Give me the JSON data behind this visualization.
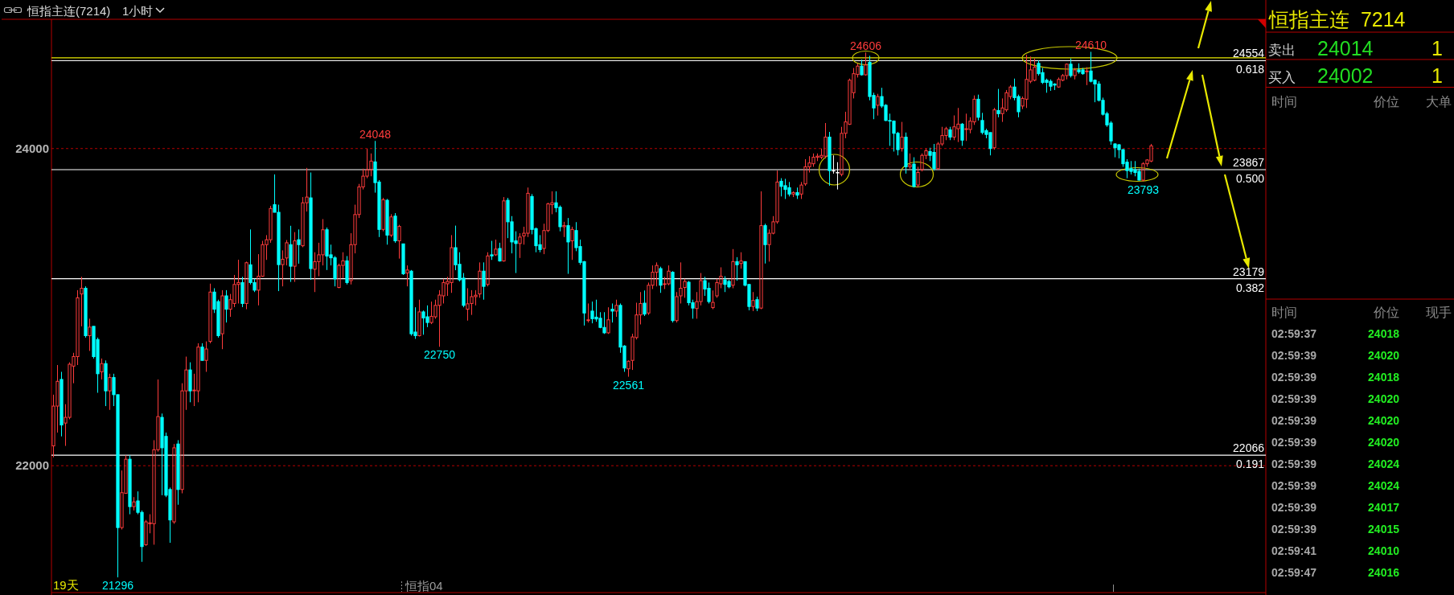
{
  "chart_data": [
    {
      "type": "candlestick",
      "title": "恒指主连(7214)",
      "subtitle": "1小时",
      "categories": [
        null,
        null,
        null,
        null,
        null,
        null,
        null,
        null,
        null,
        null,
        null,
        null,
        null,
        null,
        null,
        null,
        null,
        null,
        null,
        null,
        null,
        null,
        null,
        null,
        null,
        null,
        null,
        null,
        null,
        null,
        null,
        null,
        null,
        null,
        null,
        null,
        null,
        null,
        null,
        null,
        null,
        null,
        null,
        null,
        null,
        null,
        null,
        null,
        null,
        null,
        null,
        null,
        null,
        null,
        null,
        null,
        null,
        null,
        null,
        null,
        null,
        null,
        null,
        null,
        null,
        null,
        null,
        null,
        null,
        null,
        null,
        null,
        null,
        null,
        null,
        null,
        null,
        null,
        null,
        null,
        null,
        null,
        null,
        null,
        null,
        null,
        null,
        null,
        null,
        null,
        null,
        null,
        null,
        null,
        null,
        null,
        null,
        null,
        null,
        null,
        null,
        null,
        null,
        null,
        null,
        null,
        null,
        null,
        null,
        null,
        null,
        null,
        null,
        null,
        null,
        null,
        null,
        null,
        null,
        null,
        null,
        null,
        null,
        null,
        null,
        null,
        null,
        null,
        null,
        null,
        null,
        null,
        null,
        null,
        null,
        null,
        null,
        null,
        null,
        null,
        null,
        null,
        null,
        null,
        null,
        null,
        null,
        null,
        null,
        null,
        null,
        null,
        null,
        null,
        null,
        null,
        null,
        null,
        null,
        null,
        null,
        null,
        null,
        null,
        null,
        null,
        null,
        null,
        null,
        null,
        null,
        null,
        null,
        null,
        null,
        null,
        null,
        null,
        null,
        null,
        null,
        null,
        null,
        null,
        null,
        null,
        null,
        null,
        null,
        null,
        null,
        null,
        null,
        null,
        null,
        null,
        null,
        null,
        null,
        null,
        null,
        null,
        null,
        null,
        null,
        null,
        null,
        null,
        null,
        null,
        null,
        null,
        null,
        null,
        null,
        null,
        null,
        null,
        null,
        null,
        null,
        null,
        null,
        null,
        null,
        null,
        null,
        null,
        null,
        null,
        null,
        null,
        null,
        null,
        null,
        null,
        null,
        null,
        null,
        null,
        null,
        null,
        null,
        null,
        null,
        null,
        null,
        null,
        null,
        null,
        null,
        null,
        null,
        null,
        null,
        null,
        null,
        null,
        null,
        null,
        null,
        null,
        null,
        null,
        null,
        null,
        null,
        null,
        null,
        null,
        null,
        null,
        null,
        null,
        null,
        null,
        null,
        null,
        null,
        null,
        null,
        null,
        null,
        null,
        null,
        null,
        null,
        null,
        null,
        null,
        null,
        null,
        null,
        null,
        null,
        null,
        null,
        null,
        null,
        null,
        null,
        null
      ],
      "ohlc": [
        [
          22125,
          22448,
          22053,
          22376
        ],
        [
          22376,
          22635,
          22209,
          22532
        ],
        [
          22544,
          22592,
          22185,
          22257
        ],
        [
          22269,
          22388,
          22125,
          22305
        ],
        [
          22305,
          22652,
          22293,
          22640
        ],
        [
          22628,
          22712,
          22520,
          22688
        ],
        [
          22688,
          23107,
          22635,
          23059
        ],
        [
          23083,
          23191,
          22879,
          23119
        ],
        [
          23119,
          23131,
          22808,
          22820
        ],
        [
          22820,
          22927,
          22724,
          22874
        ],
        [
          22879,
          22879,
          22676,
          22688
        ],
        [
          22796,
          22808,
          22460,
          22580
        ],
        [
          22592,
          22676,
          22544,
          22644
        ],
        [
          22644,
          22664,
          22376,
          22472
        ],
        [
          22472,
          22580,
          22352,
          22556
        ],
        [
          22556,
          22580,
          22376,
          22448
        ],
        [
          22448,
          22448,
          21296,
          21610
        ],
        [
          21610,
          21970,
          21598,
          21830
        ],
        [
          21826,
          22065,
          21826,
          22041
        ],
        [
          22041,
          22065,
          21694,
          21742
        ],
        [
          21742,
          21802,
          21718,
          21772
        ],
        [
          21778,
          21838,
          21694,
          21706
        ],
        [
          21706,
          21718,
          21394,
          21490
        ],
        [
          21502,
          21658,
          21495,
          21646
        ],
        [
          21634,
          21694,
          21574,
          21640
        ],
        [
          21634,
          22161,
          21502,
          22101
        ],
        [
          22101,
          22544,
          22089,
          22310
        ],
        [
          22305,
          22329,
          21814,
          22113
        ],
        [
          22185,
          22209,
          21802,
          21814
        ],
        [
          21850,
          21862,
          21514,
          21658
        ],
        [
          21646,
          22137,
          21634,
          22113
        ],
        [
          22137,
          22161,
          21754,
          21850
        ],
        [
          21850,
          22520,
          21826,
          22472
        ],
        [
          22472,
          22688,
          22352,
          22604
        ],
        [
          22604,
          22652,
          22400,
          22472
        ],
        [
          22472,
          22580,
          22376,
          22477
        ],
        [
          22472,
          22772,
          22400,
          22748
        ],
        [
          22748,
          22772,
          22664,
          22664
        ],
        [
          22664,
          22784,
          22592,
          22736
        ],
        [
          22784,
          23148,
          22772,
          23095
        ],
        [
          23095,
          23119,
          22963,
          22987
        ],
        [
          23035,
          23047,
          22808,
          22820
        ],
        [
          22832,
          23107,
          22735,
          23071
        ],
        [
          23071,
          23107,
          22903,
          22987
        ],
        [
          22987,
          23083,
          22939,
          23047
        ],
        [
          23023,
          23203,
          23000,
          23143
        ],
        [
          23143,
          23299,
          23023,
          23155
        ],
        [
          23155,
          23191,
          23000,
          23023
        ],
        [
          23023,
          23287,
          22987,
          23280
        ],
        [
          23267,
          23490,
          23143,
          23155
        ],
        [
          23155,
          23179,
          23095,
          23107
        ],
        [
          23107,
          23334,
          23011,
          23195
        ],
        [
          23195,
          23418,
          23191,
          23394
        ],
        [
          23394,
          23454,
          23298,
          23425
        ],
        [
          23425,
          23639,
          23406,
          23622
        ],
        [
          23646,
          23837,
          23598,
          23598
        ],
        [
          23598,
          23646,
          23101,
          23268
        ],
        [
          23268,
          23358,
          23131,
          23302
        ],
        [
          23310,
          23423,
          23263,
          23406
        ],
        [
          23394,
          23513,
          23159,
          23258
        ],
        [
          23258,
          23473,
          23159,
          23418
        ],
        [
          23425,
          23490,
          23274,
          23394
        ],
        [
          23387,
          23694,
          23378,
          23658
        ],
        [
          23658,
          23878,
          23603,
          23694
        ],
        [
          23689,
          23849,
          23172,
          23243
        ],
        [
          23239,
          23346,
          23095,
          23287
        ],
        [
          23287,
          23406,
          23195,
          23330
        ],
        [
          23330,
          23555,
          23263,
          23488
        ],
        [
          23488,
          23502,
          23234,
          23322
        ],
        [
          23330,
          23394,
          23263,
          23311
        ],
        [
          23311,
          23322,
          23131,
          23178
        ],
        [
          23124,
          23274,
          23119,
          23263
        ],
        [
          23263,
          23346,
          23184,
          23292
        ],
        [
          23292,
          23322,
          23143,
          23155
        ],
        [
          23167,
          23466,
          23143,
          23394
        ],
        [
          23394,
          23646,
          23339,
          23584
        ],
        [
          23584,
          23777,
          23562,
          23758
        ],
        [
          23758,
          23873,
          23742,
          23826
        ],
        [
          23826,
          23998,
          23813,
          23866
        ],
        [
          23866,
          23969,
          23825,
          23921
        ],
        [
          23916,
          24048,
          23722,
          23785
        ],
        [
          23789,
          23801,
          23442,
          23490
        ],
        [
          23490,
          23689,
          23478,
          23677
        ],
        [
          23674,
          23682,
          23394,
          23454
        ],
        [
          23454,
          23586,
          23442,
          23569
        ],
        [
          23574,
          23593,
          23406,
          23418
        ],
        [
          23418,
          23519,
          23306,
          23509
        ],
        [
          23399,
          23399,
          23203,
          23210
        ],
        [
          23215,
          23263,
          23131,
          23234
        ],
        [
          23227,
          23234,
          22820,
          22832
        ],
        [
          22843,
          22999,
          22800,
          22820
        ],
        [
          22820,
          23047,
          22815,
          22970
        ],
        [
          22970,
          22979,
          22826,
          22932
        ],
        [
          22939,
          23011,
          22874,
          22903
        ],
        [
          22903,
          23035,
          22893,
          22942
        ],
        [
          22939,
          23047,
          22927,
          23011
        ],
        [
          23011,
          23107,
          22750,
          23076
        ],
        [
          23071,
          23179,
          23023,
          23155
        ],
        [
          23147,
          23191,
          23071,
          23162
        ],
        [
          23155,
          23454,
          23090,
          23375
        ],
        [
          23375,
          23514,
          23233,
          23267
        ],
        [
          23270,
          23346,
          23162,
          23172
        ],
        [
          23183,
          23215,
          22999,
          23011
        ],
        [
          22987,
          23119,
          22915,
          23021
        ],
        [
          23023,
          23107,
          22951,
          23066
        ],
        [
          23066,
          23107,
          23011,
          23075
        ],
        [
          23083,
          23282,
          23059,
          23227
        ],
        [
          23227,
          23282,
          23047,
          23131
        ],
        [
          23143,
          23346,
          23131,
          23323
        ],
        [
          23330,
          23418,
          23298,
          23323
        ],
        [
          23330,
          23426,
          23323,
          23366
        ],
        [
          23370,
          23406,
          23287,
          23291
        ],
        [
          23291,
          23694,
          23287,
          23670
        ],
        [
          23674,
          23689,
          23435,
          23538
        ],
        [
          23538,
          23574,
          23339,
          23411
        ],
        [
          23418,
          23478,
          23215,
          23401
        ],
        [
          23401,
          23466,
          23310,
          23442
        ],
        [
          23449,
          23507,
          23394,
          23466
        ],
        [
          23466,
          23754,
          23442,
          23718
        ],
        [
          23698,
          23713,
          23459,
          23490
        ],
        [
          23495,
          23502,
          23346,
          23387
        ],
        [
          23394,
          23454,
          23346,
          23363
        ],
        [
          23370,
          23526,
          23334,
          23483
        ],
        [
          23483,
          23658,
          23473,
          23651
        ],
        [
          23646,
          23730,
          23586,
          23658
        ],
        [
          23658,
          23730,
          23598,
          23627
        ],
        [
          23630,
          23641,
          23478,
          23507
        ],
        [
          23507,
          23538,
          23442,
          23514
        ],
        [
          23514,
          23562,
          23210,
          23411
        ],
        [
          23418,
          23507,
          23298,
          23490
        ],
        [
          23483,
          23536,
          23353,
          23375
        ],
        [
          23382,
          23426,
          23267,
          23282
        ],
        [
          23287,
          23291,
          22884,
          22963
        ],
        [
          22915,
          23023,
          22903,
          22920
        ],
        [
          22975,
          23035,
          22898,
          22927
        ],
        [
          22937,
          23047,
          22908,
          22925
        ],
        [
          22930,
          22968,
          22867,
          22872
        ],
        [
          22872,
          22968,
          22831,
          22838
        ],
        [
          22838,
          22999,
          22831,
          22920
        ],
        [
          22987,
          23023,
          22903,
          22975
        ],
        [
          22975,
          23047,
          22939,
          23011
        ],
        [
          23011,
          23023,
          22712,
          22748
        ],
        [
          22755,
          22760,
          22592,
          22616
        ],
        [
          22611,
          22664,
          22561,
          22659
        ],
        [
          22664,
          22832,
          22604,
          22812
        ],
        [
          22808,
          23028,
          22796,
          22951
        ],
        [
          22951,
          23095,
          22891,
          23023
        ],
        [
          23025,
          23105,
          22944,
          22956
        ],
        [
          22963,
          23155,
          22951,
          23138
        ],
        [
          23138,
          23263,
          23114,
          23220
        ],
        [
          23220,
          23282,
          23131,
          23263
        ],
        [
          23243,
          23255,
          23090,
          23138
        ],
        [
          23143,
          23191,
          23114,
          23147
        ],
        [
          23147,
          23263,
          23138,
          23227
        ],
        [
          23220,
          23227,
          22903,
          22915
        ],
        [
          22915,
          23095,
          22903,
          23066
        ],
        [
          23071,
          23282,
          23023,
          23119
        ],
        [
          23124,
          23179,
          23059,
          23162
        ],
        [
          23157,
          23165,
          23011,
          23028
        ],
        [
          23028,
          23047,
          22927,
          22994
        ],
        [
          22991,
          23095,
          22927,
          23035
        ],
        [
          23035,
          23215,
          23011,
          23167
        ],
        [
          23167,
          23191,
          23071,
          23114
        ],
        [
          23119,
          23155,
          23023,
          23035
        ],
        [
          22997,
          23105,
          22987,
          23030
        ],
        [
          23071,
          23179,
          23059,
          23155
        ],
        [
          23147,
          23251,
          23119,
          23195
        ],
        [
          23172,
          23195,
          23095,
          23143
        ],
        [
          23162,
          23172,
          23119,
          23128
        ],
        [
          23138,
          23366,
          23119,
          23287
        ],
        [
          23287,
          23315,
          23167,
          23267
        ],
        [
          23275,
          23346,
          23243,
          23291
        ],
        [
          23287,
          23287,
          23131,
          23138
        ],
        [
          23143,
          23147,
          22980,
          23004
        ],
        [
          23004,
          23095,
          22975,
          23042
        ],
        [
          23047,
          23066,
          22975,
          22994
        ],
        [
          22994,
          23730,
          22987,
          23514
        ],
        [
          23514,
          23526,
          23275,
          23394
        ],
        [
          23394,
          23490,
          23287,
          23466
        ],
        [
          23466,
          23574,
          23459,
          23538
        ],
        [
          23538,
          23861,
          23526,
          23789
        ],
        [
          23794,
          23813,
          23698,
          23761
        ],
        [
          23766,
          23809,
          23682,
          23742
        ],
        [
          23753,
          23789,
          23698,
          23713
        ],
        [
          23713,
          23730,
          23694,
          23722
        ],
        [
          23722,
          23754,
          23682,
          23706
        ],
        [
          23713,
          23789,
          23682,
          23770
        ],
        [
          23777,
          23933,
          23765,
          23885
        ],
        [
          23885,
          23952,
          23849,
          23909
        ],
        [
          23904,
          23969,
          23885,
          23945
        ],
        [
          23945,
          23969,
          23921,
          23952
        ],
        [
          23945,
          24000,
          23933,
          23957
        ],
        [
          23952,
          24161,
          23938,
          24072
        ],
        [
          24072,
          24105,
          23765,
          23861
        ],
        [
          23861,
          23957,
          23842,
          23861
        ],
        [
          23849,
          23914,
          23742,
          23849
        ],
        [
          23837,
          24137,
          23825,
          24096
        ],
        [
          24096,
          24232,
          24065,
          24168
        ],
        [
          24153,
          24441,
          24149,
          24431
        ],
        [
          24352,
          24508,
          24316,
          24472
        ],
        [
          24467,
          24537,
          24448,
          24520
        ],
        [
          24520,
          24561,
          24460,
          24465
        ],
        [
          24465,
          24606,
          24460,
          24527
        ],
        [
          24544,
          24585,
          24304,
          24328
        ],
        [
          24335,
          24352,
          24185,
          24256
        ],
        [
          24273,
          24345,
          24208,
          24328
        ],
        [
          24328,
          24383,
          24256,
          24268
        ],
        [
          24273,
          24280,
          24173,
          24177
        ],
        [
          24177,
          24220,
          24017,
          24173
        ],
        [
          24173,
          24177,
          23981,
          24096
        ],
        [
          24096,
          24105,
          23957,
          23993
        ],
        [
          24000,
          24168,
          23981,
          24072
        ],
        [
          24072,
          24101,
          23842,
          23885
        ],
        [
          23885,
          23969,
          23873,
          23897
        ],
        [
          23902,
          23945,
          23754,
          23761
        ],
        [
          23770,
          23885,
          23754,
          23849
        ],
        [
          23866,
          23969,
          23856,
          23957
        ],
        [
          23957,
          24000,
          23933,
          23986
        ],
        [
          23981,
          24005,
          23921,
          23957
        ],
        [
          23976,
          24029,
          23861,
          23873
        ],
        [
          23873,
          24041,
          23866,
          24029
        ],
        [
          24029,
          24137,
          24017,
          24082
        ],
        [
          24082,
          24137,
          24053,
          24125
        ],
        [
          24118,
          24137,
          24053,
          24072
        ],
        [
          24072,
          24209,
          24053,
          24137
        ],
        [
          24125,
          24256,
          24041,
          24154
        ],
        [
          24154,
          24161,
          24017,
          24053
        ],
        [
          24120,
          24220,
          24048,
          24125
        ],
        [
          24120,
          24197,
          24096,
          24173
        ],
        [
          24168,
          24335,
          24149,
          24311
        ],
        [
          24311,
          24340,
          24177,
          24197
        ],
        [
          24177,
          24225,
          24089,
          24101
        ],
        [
          24113,
          24125,
          24065,
          24089
        ],
        [
          24101,
          24101,
          23957,
          24000
        ],
        [
          24005,
          24256,
          23993,
          24244
        ],
        [
          24240,
          24376,
          24197,
          24220
        ],
        [
          24220,
          24316,
          24168,
          24256
        ],
        [
          24244,
          24369,
          24232,
          24352
        ],
        [
          24328,
          24400,
          24311,
          24388
        ],
        [
          24388,
          24441,
          24304,
          24321
        ],
        [
          24328,
          24340,
          24197,
          24232
        ],
        [
          24268,
          24328,
          24249,
          24316
        ],
        [
          24311,
          24592,
          24256,
          24436
        ],
        [
          24424,
          24580,
          24412,
          24496
        ],
        [
          24431,
          24568,
          24424,
          24513
        ],
        [
          24537,
          24556,
          24460,
          24472
        ],
        [
          24479,
          24508,
          24407,
          24417
        ],
        [
          24431,
          24441,
          24352,
          24417
        ],
        [
          24424,
          24436,
          24364,
          24393
        ],
        [
          24407,
          24412,
          24369,
          24400
        ],
        [
          24388,
          24448,
          24383,
          24436
        ],
        [
          24431,
          24470,
          24424,
          24460
        ],
        [
          24460,
          24537,
          24436,
          24532
        ],
        [
          24532,
          24568,
          24448,
          24460
        ],
        [
          24460,
          24508,
          24436,
          24496
        ],
        [
          24496,
          24537,
          24472,
          24484
        ],
        [
          24496,
          24508,
          24465,
          24472
        ],
        [
          24484,
          24513,
          24400,
          24489
        ],
        [
          24489,
          24610,
          24417,
          24424
        ],
        [
          24431,
          24436,
          24292,
          24407
        ],
        [
          24407,
          24424,
          24297,
          24304
        ],
        [
          24304,
          24321,
          24208,
          24216
        ],
        [
          24220,
          24232,
          24137,
          24149
        ],
        [
          24161,
          24173,
          24024,
          24048
        ],
        [
          24029,
          24034,
          23945,
          24005
        ],
        [
          24024,
          24029,
          23938,
          23993
        ],
        [
          23993,
          23998,
          23885,
          23904
        ],
        [
          23914,
          23933,
          23813,
          23861
        ],
        [
          23873,
          23921,
          23837,
          23856
        ],
        [
          23866,
          23921,
          23825,
          23849
        ],
        [
          23856,
          23873,
          23798,
          23801
        ],
        [
          23801,
          23914,
          23793,
          23904
        ],
        [
          23904,
          23933,
          23885,
          23928
        ],
        [
          23921,
          24029,
          23914,
          24017
        ],
        null,
        null,
        null,
        null,
        null,
        null,
        null,
        null,
        null,
        null,
        null,
        null,
        null,
        null,
        null,
        null,
        null,
        null,
        null,
        null,
        null,
        null,
        null,
        null,
        null,
        null,
        null,
        null
      ],
      "colors": [
        "#ff3c3c",
        "#ff3c3c",
        "#00ffff",
        "#ff3c3c",
        "#ff3c3c",
        "#ff3c3c",
        "#ff3c3c",
        "#ff3c3c",
        "#00ffff",
        "#ff3c3c",
        "#00ffff",
        "#00ffff",
        "#ff3c3c",
        "#00ffff",
        "#ff3c3c",
        "#00ffff",
        "#00ffff",
        "#ff3c3c",
        "#ff3c3c",
        "#00ffff",
        "#ff3c3c",
        "#00ffff",
        "#00ffff",
        "#ff3c3c",
        "#ff3c3c",
        "#ff3c3c",
        "#ff3c3c",
        "#00ffff",
        "#00ffff",
        "#00ffff",
        "#ff3c3c",
        "#00ffff",
        "#ff3c3c",
        "#ff3c3c",
        "#00ffff",
        "#ff3c3c",
        "#ff3c3c",
        "#00ffff",
        "#ff3c3c",
        "#ff3c3c",
        "#00ffff",
        "#00ffff",
        "#ff3c3c",
        "#00ffff",
        "#ff3c3c",
        "#ff3c3c",
        "#ff3c3c",
        "#00ffff",
        "#ff3c3c",
        "#00ffff",
        "#00ffff",
        "#ff3c3c",
        "#ff3c3c",
        "#ff3c3c",
        "#ff3c3c",
        "#00ffff",
        "#00ffff",
        "#ff3c3c",
        "#ff3c3c",
        "#00ffff",
        "#ff3c3c",
        "#00ffff",
        "#ff3c3c",
        "#ff3c3c",
        "#00ffff",
        "#ff3c3c",
        "#ff3c3c",
        "#ff3c3c",
        "#00ffff",
        "#00ffff",
        "#00ffff",
        "#ff3c3c",
        "#ff3c3c",
        "#00ffff",
        "#ff3c3c",
        "#ff3c3c",
        "#ff3c3c",
        "#ff3c3c",
        "#ff3c3c",
        "#ff3c3c",
        "#00ffff",
        "#00ffff",
        "#ff3c3c",
        "#00ffff",
        "#ff3c3c",
        "#00ffff",
        "#ff3c3c",
        "#00ffff",
        "#ff3c3c",
        "#00ffff",
        "#00ffff",
        "#ff3c3c",
        "#00ffff",
        "#00ffff",
        "#ff3c3c",
        "#ff3c3c",
        "#ff3c3c",
        "#ff3c3c",
        "#ff3c3c",
        "#ff3c3c",
        "#00ffff",
        "#00ffff",
        "#00ffff",
        "#ff3c3c",
        "#ff3c3c",
        "#ff3c3c",
        "#ff3c3c",
        "#00ffff",
        "#ff3c3c",
        "#00ffff",
        "#ff3c3c",
        "#00ffff",
        "#ff3c3c",
        "#00ffff",
        "#00ffff",
        "#00ffff",
        "#ff3c3c",
        "#ff3c3c",
        "#ff3c3c",
        "#00ffff",
        "#00ffff",
        "#00ffff",
        "#ff3c3c",
        "#ff3c3c",
        "#ff3c3c",
        "#00ffff",
        "#00ffff",
        "#ff3c3c",
        "#00ffff",
        "#ff3c3c",
        "#00ffff",
        "#00ffff",
        "#00ffff",
        "#ff3c3c",
        "#00ffff",
        "#00ffff",
        "#00ffff",
        "#00ffff",
        "#ff3c3c",
        "#00ffff",
        "#ff3c3c",
        "#00ffff",
        "#00ffff",
        "#ff3c3c",
        "#ff3c3c",
        "#ff3c3c",
        "#ff3c3c",
        "#00ffff",
        "#ff3c3c",
        "#ff3c3c",
        "#ff3c3c",
        "#00ffff",
        "#ff3c3c",
        "#ff3c3c",
        "#00ffff",
        "#ff3c3c",
        "#ff3c3c",
        "#ff3c3c",
        "#00ffff",
        "#00ffff",
        "#ff3c3c",
        "#ff3c3c",
        "#00ffff",
        "#00ffff",
        "#ff3c3c",
        "#ff3c3c",
        "#ff3c3c",
        "#00ffff",
        "#00ffff",
        "#ff3c3c",
        "#00ffff",
        "#ff3c3c",
        "#00ffff",
        "#00ffff",
        "#ff3c3c",
        "#00ffff",
        "#ff3c3c",
        "#00ffff",
        "#ff3c3c",
        "#ff3c3c",
        "#ff3c3c",
        "#00ffff",
        "#00ffff",
        "#00ffff",
        "#ff3c3c",
        "#00ffff",
        "#ff3c3c",
        "#ff3c3c",
        "#ff3c3c",
        "#ff3c3c",
        "#ff3c3c",
        "#ff3c3c",
        "#ff3c3c",
        "#00ffff",
        "#ffffff",
        "#ffffff",
        "#ff3c3c",
        "#ff3c3c",
        "#ff3c3c",
        "#ff3c3c",
        "#ff3c3c",
        "#00ffff",
        "#ff3c3c",
        "#00ffff",
        "#00ffff",
        "#ff3c3c",
        "#00ffff",
        "#00ffff",
        "#00ffff",
        "#00ffff",
        "#00ffff",
        "#ff3c3c",
        "#00ffff",
        "#ff3c3c",
        "#00ffff",
        "#ff3c3c",
        "#ff3c3c",
        "#ff3c3c",
        "#00ffff",
        "#00ffff",
        "#ff3c3c",
        "#ff3c3c",
        "#ff3c3c",
        "#00ffff",
        "#ff3c3c",
        "#ff3c3c",
        "#00ffff",
        "#ff3c3c",
        "#ff3c3c",
        "#ff3c3c",
        "#00ffff",
        "#00ffff",
        "#00ffff",
        "#00ffff",
        "#ff3c3c",
        "#00ffff",
        "#ff3c3c",
        "#ff3c3c",
        "#ff3c3c",
        "#00ffff",
        "#00ffff",
        "#ff3c3c",
        "#ff3c3c",
        "#ff3c3c",
        "#ff3c3c",
        "#00ffff",
        "#00ffff",
        "#00ffff",
        "#00ffff",
        "#00ffff",
        "#ff3c3c",
        "#ff3c3c",
        "#ff3c3c",
        "#00ffff",
        "#ff3c3c",
        "#00ffff",
        "#00ffff",
        "#ff3c3c",
        "#00ffff",
        "#00ffff",
        "#00ffff",
        "#00ffff",
        "#00ffff",
        "#00ffff",
        "#00ffff",
        "#00ffff",
        "#00ffff",
        "#00ffff",
        "#00ffff",
        "#00ffff",
        "#00ffff",
        "#ff3c3c",
        "#ff3c3c",
        "#ff3c3c",
        null,
        null,
        null,
        null,
        null,
        null,
        null,
        null,
        null,
        null,
        null,
        null,
        null,
        null,
        null,
        null,
        null,
        null,
        null,
        null,
        null,
        null,
        null,
        null,
        null,
        null,
        null,
        null
      ],
      "ylim": [
        21200,
        24815
      ],
      "yticks": [
        22000,
        24000
      ],
      "grid": "y",
      "tick_labels": "y",
      "ref_lines": [
        {
          "axis": "y",
          "value": 24572,
          "color": "#e6e600"
        },
        {
          "axis": "y",
          "value": 24554,
          "label": "24554",
          "color": "#ffffff"
        },
        {
          "axis": "y",
          "value": 23867,
          "label": "23867",
          "color": "#ffffff"
        },
        {
          "axis": "y",
          "value": 23179,
          "label": "23179",
          "color": "#ffffff"
        },
        {
          "axis": "y",
          "value": 22066,
          "label": "22066",
          "color": "#ffffff"
        }
      ],
      "annotations": [
        {
          "text": "0.618",
          "y": 24554
        },
        {
          "text": "0.500",
          "y": 23867
        },
        {
          "text": "0.382",
          "y": 23179
        },
        {
          "text": "0.191",
          "y": 22066
        },
        {
          "text": "24606",
          "y": 24606
        },
        {
          "text": "24610",
          "y": 24610
        },
        {
          "text": "24048",
          "y": 24048
        },
        {
          "text": "23793",
          "y": 23793
        },
        {
          "text": "22750",
          "y": 22750
        },
        {
          "text": "22561",
          "y": 22561
        },
        {
          "text": "21296",
          "y": 21296
        },
        "19天",
        "恒指04"
      ]
    },
    {
      "type": "other",
      "title": "恒指主连  7214",
      "annotations": [
        "卖出",
        "24014",
        "1",
        "买入",
        "24002",
        "1",
        "时间",
        "价位",
        "大单",
        "时间",
        "价位",
        "现手",
        "02:59:37",
        "24018",
        "02:59:39",
        "24020",
        "02:59:39",
        "24018",
        "02:59:39",
        "24020",
        "02:59:39",
        "24020",
        "02:59:39",
        "24020",
        "02:59:39",
        "24024",
        "02:59:39",
        "24024",
        "02:59:39",
        "24017",
        "02:59:39",
        "24015",
        "02:59:41",
        "24010",
        "02:59:47",
        "24016"
      ]
    }
  ]
}
